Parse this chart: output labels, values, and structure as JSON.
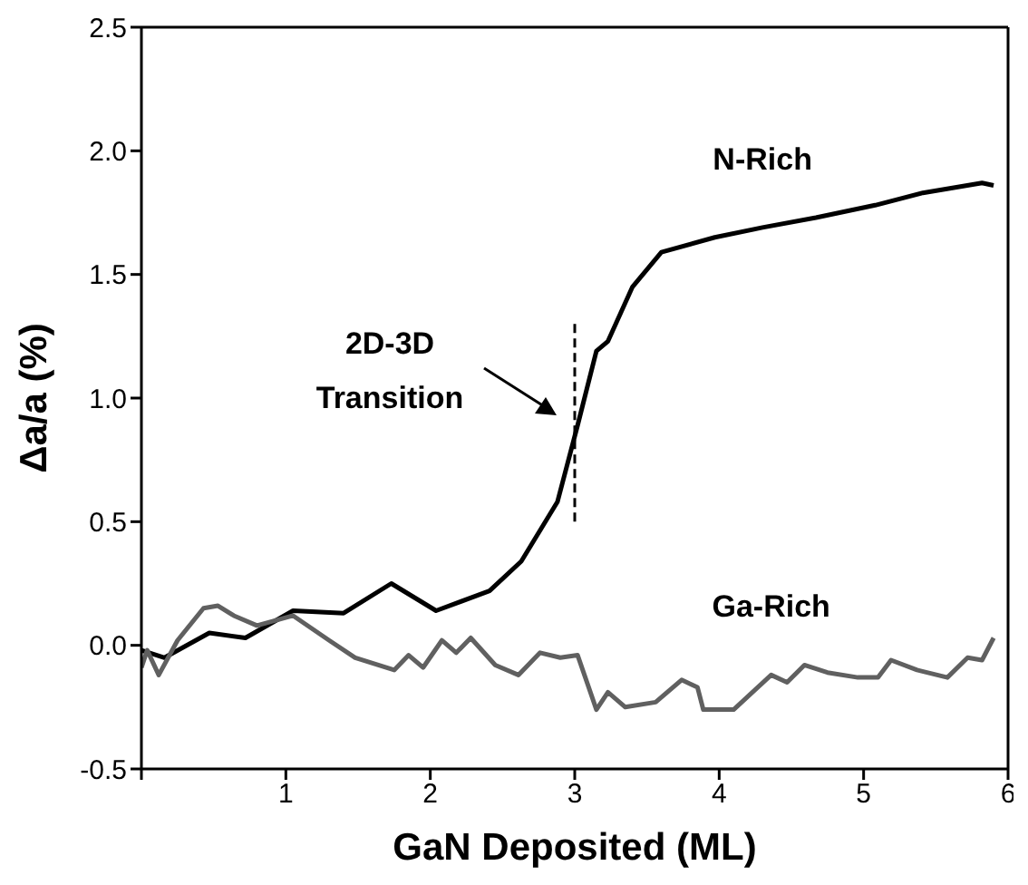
{
  "chart_data": {
    "type": "line",
    "xlabel": "GaN Deposited (ML)",
    "ylabel": "Δa/a (%)",
    "xlim": [
      0,
      6
    ],
    "xticks": [
      {
        "value": 0,
        "label": null
      },
      1,
      2,
      3,
      4,
      5,
      6
    ],
    "ylim": [
      -0.5,
      2.5
    ],
    "yticks": [
      -0.5,
      {
        "value": 0,
        "label": "0.0"
      },
      0.5,
      {
        "value": 1,
        "label": "1.0"
      },
      1.5,
      {
        "value": 2,
        "label": "2.0"
      },
      2.5
    ],
    "marker": "none",
    "series": [
      {
        "name": "N-Rich",
        "color": "#000000",
        "x": [
          0,
          0.16,
          0.47,
          0.72,
          1.05,
          1.4,
          1.73,
          2.04,
          2.41,
          2.63,
          2.88,
          3.02,
          3.15,
          3.23,
          3.4,
          3.6,
          3.97,
          4.3,
          4.67,
          5.08,
          5.41,
          5.82,
          5.9
        ],
        "values": [
          -0.02,
          -0.05,
          0.05,
          0.03,
          0.14,
          0.13,
          0.25,
          0.14,
          0.22,
          0.34,
          0.58,
          0.89,
          1.19,
          1.23,
          1.45,
          1.59,
          1.65,
          1.69,
          1.73,
          1.78,
          1.83,
          1.87,
          1.86
        ]
      },
      {
        "name": "Ga-Rich",
        "color": "#606060",
        "x": [
          0,
          0.04,
          0.12,
          0.25,
          0.43,
          0.53,
          0.64,
          0.8,
          1.05,
          1.3,
          1.48,
          1.75,
          1.85,
          1.95,
          2.08,
          2.18,
          2.28,
          2.45,
          2.61,
          2.76,
          2.9,
          3.02,
          3.15,
          3.23,
          3.35,
          3.56,
          3.74,
          3.85,
          3.89,
          4.1,
          4.36,
          4.47,
          4.59,
          4.75,
          4.96,
          5.1,
          5.19,
          5.37,
          5.58,
          5.72,
          5.82,
          5.9
        ],
        "values": [
          -0.09,
          -0.02,
          -0.12,
          0.02,
          0.15,
          0.16,
          0.12,
          0.08,
          0.12,
          0.02,
          -0.05,
          -0.1,
          -0.04,
          -0.09,
          0.02,
          -0.03,
          0.03,
          -0.08,
          -0.12,
          -0.03,
          -0.05,
          -0.04,
          -0.26,
          -0.19,
          -0.25,
          -0.23,
          -0.14,
          -0.17,
          -0.26,
          -0.26,
          -0.12,
          -0.15,
          -0.08,
          -0.11,
          -0.13,
          -0.13,
          -0.06,
          -0.1,
          -0.13,
          -0.05,
          -0.06,
          0.03
        ]
      },
      {
        "color": "#000000",
        "line_style": "dashed",
        "x": [
          3,
          3
        ],
        "values": [
          0.5,
          1.3
        ]
      }
    ],
    "annotations": [
      "2D-3D\nTransition"
    ]
  }
}
